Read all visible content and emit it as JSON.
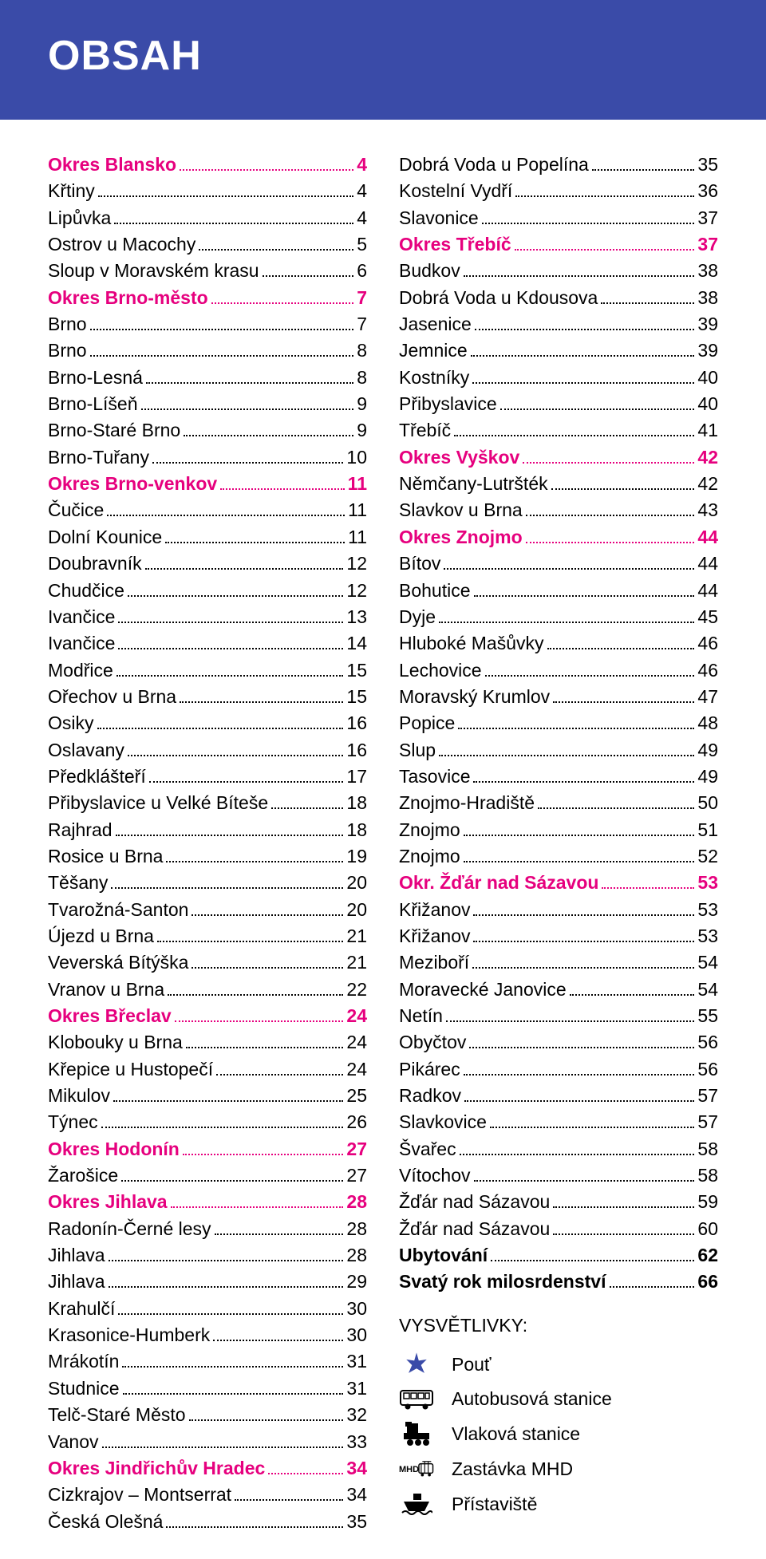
{
  "title": "OBSAH",
  "colors": {
    "banner_bg": "#3a4ba8",
    "district": "#e6007e",
    "text": "#000000"
  },
  "left": [
    {
      "label": "Okres Blansko",
      "page": "4",
      "style": "district"
    },
    {
      "label": "Křtiny",
      "page": "4"
    },
    {
      "label": "Lipůvka",
      "page": "4"
    },
    {
      "label": "Ostrov u Macochy",
      "page": "5"
    },
    {
      "label": "Sloup v Moravském krasu",
      "page": "6"
    },
    {
      "label": "Okres Brno-město",
      "page": "7",
      "style": "district"
    },
    {
      "label": "Brno",
      "page": "7"
    },
    {
      "label": "Brno",
      "page": "8"
    },
    {
      "label": "Brno-Lesná",
      "page": "8"
    },
    {
      "label": "Brno-Líšeň",
      "page": "9"
    },
    {
      "label": "Brno-Staré Brno",
      "page": "9"
    },
    {
      "label": "Brno-Tuřany",
      "page": "10"
    },
    {
      "label": "Okres Brno-venkov",
      "page": "11",
      "style": "district"
    },
    {
      "label": "Čučice",
      "page": "11"
    },
    {
      "label": "Dolní Kounice",
      "page": "11"
    },
    {
      "label": "Doubravník",
      "page": "12"
    },
    {
      "label": "Chudčice",
      "page": "12"
    },
    {
      "label": "Ivančice",
      "page": "13"
    },
    {
      "label": "Ivančice",
      "page": "14"
    },
    {
      "label": "Modřice",
      "page": "15"
    },
    {
      "label": "Ořechov u Brna",
      "page": "15"
    },
    {
      "label": "Osiky",
      "page": "16"
    },
    {
      "label": "Oslavany",
      "page": "16"
    },
    {
      "label": "Předklášteří",
      "page": "17"
    },
    {
      "label": "Přibyslavice u Velké Bíteše",
      "page": "18"
    },
    {
      "label": "Rajhrad",
      "page": "18"
    },
    {
      "label": "Rosice u Brna",
      "page": "19"
    },
    {
      "label": "Těšany",
      "page": "20"
    },
    {
      "label": "Tvarožná-Santon",
      "page": "20"
    },
    {
      "label": "Újezd u Brna",
      "page": "21"
    },
    {
      "label": "Veverská Bítýška",
      "page": "21"
    },
    {
      "label": "Vranov u Brna",
      "page": "22"
    },
    {
      "label": "Okres Břeclav",
      "page": "24",
      "style": "district"
    },
    {
      "label": "Klobouky u Brna",
      "page": "24"
    },
    {
      "label": "Křepice u Hustopečí",
      "page": "24"
    },
    {
      "label": "Mikulov",
      "page": "25"
    },
    {
      "label": "Týnec",
      "page": "26"
    },
    {
      "label": "Okres Hodonín",
      "page": "27",
      "style": "district"
    },
    {
      "label": "Žarošice",
      "page": "27"
    },
    {
      "label": "Okres Jihlava",
      "page": "28",
      "style": "district"
    },
    {
      "label": "Radonín-Černé lesy",
      "page": "28"
    },
    {
      "label": "Jihlava",
      "page": "28"
    },
    {
      "label": "Jihlava",
      "page": "29"
    },
    {
      "label": "Krahulčí",
      "page": "30"
    },
    {
      "label": "Krasonice-Humberk",
      "page": "30"
    },
    {
      "label": "Mrákotín",
      "page": "31"
    },
    {
      "label": "Studnice",
      "page": "31"
    },
    {
      "label": "Telč-Staré Město",
      "page": "32"
    },
    {
      "label": "Vanov",
      "page": "33"
    },
    {
      "label": "Okres Jindřichův Hradec",
      "page": "34",
      "style": "district"
    },
    {
      "label": "Cizkrajov – Montserrat",
      "page": "34"
    },
    {
      "label": "Česká Olešná",
      "page": "35"
    }
  ],
  "right": [
    {
      "label": "Dobrá Voda u Popelína",
      "page": "35"
    },
    {
      "label": "Kostelní Vydří",
      "page": "36"
    },
    {
      "label": "Slavonice",
      "page": "37"
    },
    {
      "label": "Okres Třebíč",
      "page": "37",
      "style": "district"
    },
    {
      "label": "Budkov",
      "page": "38"
    },
    {
      "label": "Dobrá Voda u Kdousova",
      "page": "38"
    },
    {
      "label": "Jasenice",
      "page": "39"
    },
    {
      "label": "Jemnice",
      "page": "39"
    },
    {
      "label": "Kostníky",
      "page": "40"
    },
    {
      "label": "Přibyslavice",
      "page": "40"
    },
    {
      "label": "Třebíč",
      "page": "41"
    },
    {
      "label": "Okres Vyškov",
      "page": "42",
      "style": "district"
    },
    {
      "label": "Němčany-Lutršték",
      "page": "42"
    },
    {
      "label": "Slavkov u Brna",
      "page": "43"
    },
    {
      "label": "Okres Znojmo",
      "page": "44",
      "style": "district"
    },
    {
      "label": "Bítov",
      "page": "44"
    },
    {
      "label": "Bohutice",
      "page": "44"
    },
    {
      "label": "Dyje",
      "page": "45"
    },
    {
      "label": "Hluboké Mašůvky",
      "page": "46"
    },
    {
      "label": "Lechovice",
      "page": "46"
    },
    {
      "label": "Moravský Krumlov",
      "page": "47"
    },
    {
      "label": "Popice",
      "page": "48"
    },
    {
      "label": "Slup",
      "page": "49"
    },
    {
      "label": "Tasovice",
      "page": "49"
    },
    {
      "label": "Znojmo-Hradiště",
      "page": "50"
    },
    {
      "label": "Znojmo",
      "page": "51"
    },
    {
      "label": "Znojmo",
      "page": "52"
    },
    {
      "label": "Okr. Žďár nad Sázavou",
      "page": "53",
      "style": "district"
    },
    {
      "label": "Křižanov",
      "page": "53"
    },
    {
      "label": "Křižanov",
      "page": "53"
    },
    {
      "label": "Meziboří",
      "page": "54"
    },
    {
      "label": "Moravecké Janovice",
      "page": "54"
    },
    {
      "label": "Netín",
      "page": "55"
    },
    {
      "label": "Obyčtov",
      "page": "56"
    },
    {
      "label": "Pikárec",
      "page": "56"
    },
    {
      "label": "Radkov",
      "page": "57"
    },
    {
      "label": "Slavkovice",
      "page": "57"
    },
    {
      "label": "Švařec",
      "page": "58"
    },
    {
      "label": "Vítochov",
      "page": "58"
    },
    {
      "label": "Žďár nad Sázavou",
      "page": "59"
    },
    {
      "label": "Žďár nad Sázavou",
      "page": "60"
    },
    {
      "label": "Ubytování",
      "page": "62",
      "style": "bold"
    },
    {
      "label": "Svatý rok milosrdenství",
      "page": "66",
      "style": "bold"
    }
  ],
  "legend": {
    "title": "VYSVĚTLIVKY:",
    "items": [
      {
        "icon": "star",
        "label": "Pouť"
      },
      {
        "icon": "bus",
        "label": "Autobusová stanice"
      },
      {
        "icon": "train",
        "label": "Vlaková stanice"
      },
      {
        "icon": "mhd",
        "label": "Zastávka MHD"
      },
      {
        "icon": "boat",
        "label": "Přístaviště"
      }
    ]
  }
}
